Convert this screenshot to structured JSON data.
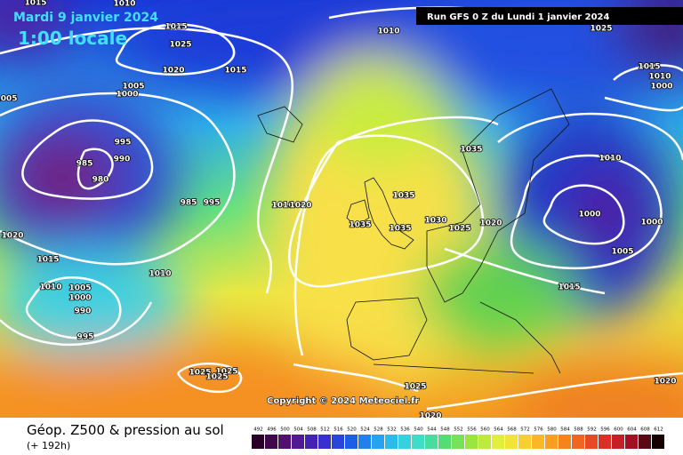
{
  "header": {
    "date": "Mardi 9 janvier 2024",
    "time": "1:00 locale",
    "run": "Run GFS 0 Z du Lundi 1 janvier 2024"
  },
  "copyright": "Copyright © 2024 Meteociel.fr",
  "footer": {
    "title": "Géop. Z500 & pression au sol",
    "lead": "(+ 192h)"
  },
  "isobar_labels": [
    "1015",
    "1010",
    "1015",
    "1025",
    "1020",
    "1015",
    "1010",
    "1025",
    "1015",
    "1010",
    "1000",
    "1005",
    "1005",
    "1000",
    "995",
    "990",
    "985",
    "980",
    "985",
    "995",
    "1010",
    "1020",
    "1035",
    "1035",
    "1035",
    "1035",
    "1030",
    "1025",
    "1020",
    "1010",
    "1000",
    "1000",
    "1005",
    "1020",
    "1015",
    "1010",
    "1010",
    "1005",
    "1000",
    "990",
    "995",
    "1015",
    "1025",
    "1025",
    "1025",
    "1025",
    "1020",
    "1020"
  ],
  "colorbar": {
    "ticks": [
      492,
      496,
      500,
      504,
      508,
      512,
      516,
      520,
      524,
      528,
      532,
      536,
      540,
      544,
      548,
      552,
      556,
      560,
      564,
      568,
      572,
      576,
      580,
      584,
      588,
      592,
      596,
      600,
      604,
      608,
      612
    ]
  }
}
